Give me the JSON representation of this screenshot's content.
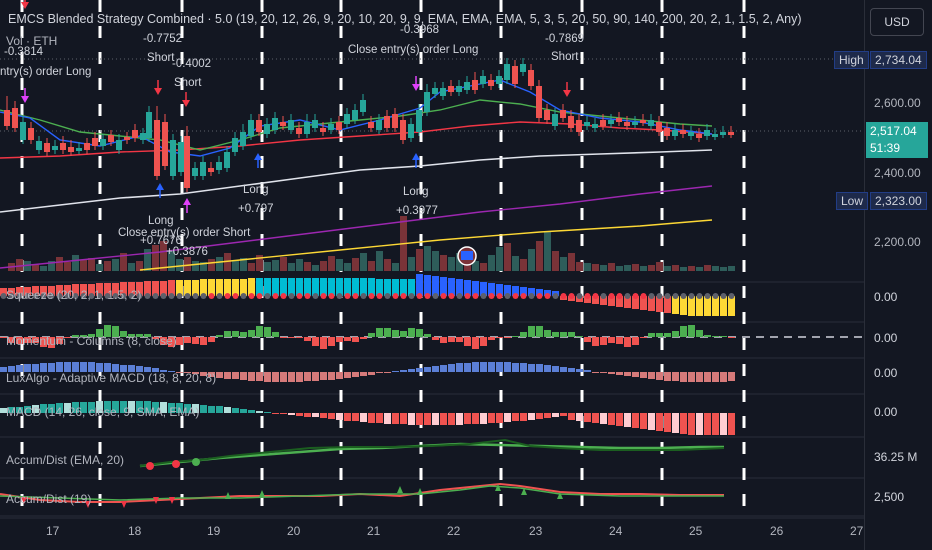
{
  "header": {
    "title": "EMCS Blended Strategy Combined · 5.0 (19, 20, 12, 26, 9, 20, 10, 20, 9, 9, EMA, EMA, EMA, 5, 3, 5, 20, 50, 90, 140, 200, 20, 2, 1, 1.5, 2, Any)",
    "volume_label": "Vol · ETH"
  },
  "price_axis": {
    "currency_button": "USD",
    "high_label": "High",
    "high_value": "2,734.04",
    "low_label": "Low",
    "low_value": "2,323.00",
    "ticks": [
      "2,600.00",
      "2,400.00",
      "2,200.00"
    ],
    "current_price": "2,517.04",
    "countdown": "51:39"
  },
  "panes": [
    {
      "label": "Squeeze (20, 2, 1, 1.5, 2)",
      "value": "0.00"
    },
    {
      "label": "Momentum - Columns (8, close)",
      "value": "0.00"
    },
    {
      "label": "LuxAlgo - Adaptive MACD (18, 8, 20, 8)",
      "value": "0.00"
    },
    {
      "label": "MACD (14, 26, close, 9, SMA, EMA)",
      "value": "0.00"
    },
    {
      "label": "Accum/Dist (EMA, 20)",
      "value": "36.25 M"
    },
    {
      "label": "Accum/Dist (19)",
      "value": "2,500"
    }
  ],
  "x_axis": [
    "17",
    "18",
    "19",
    "20",
    "21",
    "22",
    "23",
    "24",
    "25",
    "26",
    "27"
  ],
  "annotations": {
    "a1": "-0.3814",
    "a2": "ntry(s) order Long",
    "a3": "-0.7752",
    "a4": "Short",
    "a5": "-0.4002",
    "a6": "Short",
    "a7": "-0.3968",
    "a8": "Close entry(s) order Long",
    "a9": "-0.7869",
    "a10": "Short",
    "a11": "Long",
    "a12": "+0.797",
    "a13": "Long",
    "a14": "+0.3977",
    "a15": "Long",
    "a16": "Close entry(s) order Short",
    "a17": "+0.7676",
    "a18": "+0.3876"
  },
  "colors": {
    "up": "#26a69a",
    "down": "#ef5350",
    "background": "#131722",
    "ema_blue": "#2962ff",
    "ema_green": "#4caf50",
    "ema_red": "#f23645",
    "ema_white": "#e0e3eb",
    "ema_purple": "#9c27b0",
    "ema_yellow": "#fdd835"
  }
}
